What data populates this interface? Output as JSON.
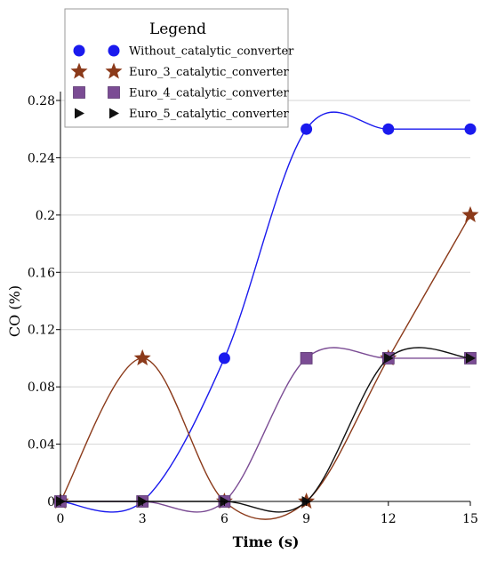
{
  "chart_data": {
    "type": "line",
    "xlabel": "Time (s)",
    "ylabel": "CO (%)",
    "xlim": [
      0,
      15
    ],
    "ylim": [
      0,
      0.28
    ],
    "xticks": [
      0,
      3,
      6,
      9,
      12,
      15
    ],
    "yticks": [
      0,
      0.04,
      0.08,
      0.12,
      0.16,
      0.2,
      0.24,
      0.28
    ],
    "xtick_labels": [
      "0",
      "3",
      "6",
      "9",
      "12",
      "15"
    ],
    "ytick_labels": [
      "0",
      "0.04",
      "0.08",
      "0.12",
      "0.16",
      "0.2",
      "0.24",
      "0.28"
    ],
    "grid": "horizontal",
    "legend": {
      "title": "Legend",
      "placement": "top-left"
    },
    "x": [
      0,
      3,
      6,
      9,
      12,
      15
    ],
    "series": [
      {
        "name": "Without_catalytic_converter",
        "values": [
          0,
          0,
          0.1,
          0.26,
          0.26,
          0.26
        ],
        "color": "#1a1aee",
        "marker": "circle"
      },
      {
        "name": "Euro_3_catalytic_converter",
        "values": [
          0,
          0.1,
          0,
          0,
          0.1,
          0.2
        ],
        "color": "#8b3a1a",
        "marker": "star"
      },
      {
        "name": "Euro_4_catalytic_converter",
        "values": [
          0,
          0,
          0,
          0.1,
          0.1,
          0.1
        ],
        "color": "#7b4c94",
        "marker": "square"
      },
      {
        "name": "Euro_5_catalytic_converter",
        "values": [
          0,
          0,
          0,
          0,
          0.1,
          0.1
        ],
        "color": "#111111",
        "marker": "triangle"
      }
    ]
  }
}
